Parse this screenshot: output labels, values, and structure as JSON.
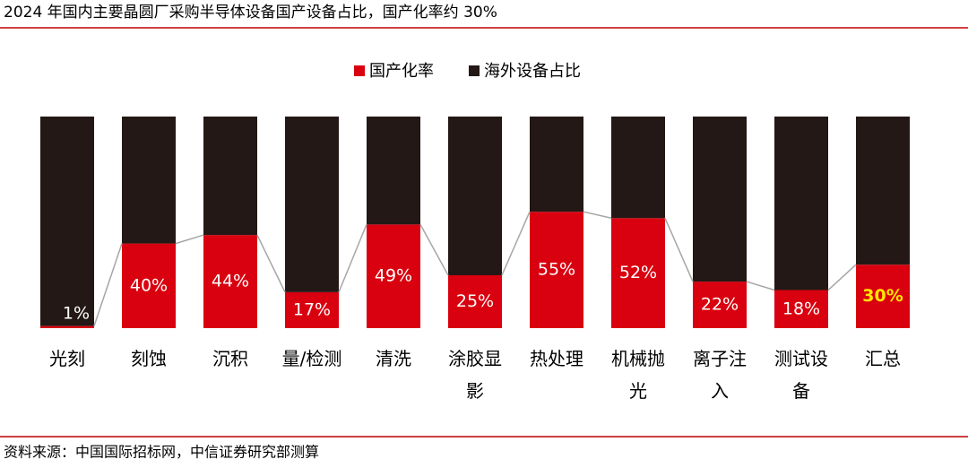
{
  "chart_data": {
    "type": "stacked_bar_100",
    "title": "2024 年国内主要晶圆厂采购半导体设备国产设备占比，国产化率约 30%",
    "source": "资料来源：中国国际招标网，中信证券研究部测算",
    "categories": [
      "光刻",
      "刻蚀",
      "沉积",
      "量/检测",
      "清洗",
      "涂胶显影",
      "热处理",
      "机械抛光",
      "离子注入",
      "测试设备",
      "汇总"
    ],
    "series": [
      {
        "name": "国产化率",
        "color": "#d9000f",
        "values": [
          1,
          40,
          44,
          17,
          49,
          25,
          55,
          52,
          22,
          18,
          30
        ],
        "value_labels": [
          "1%",
          "40%",
          "44%",
          "17%",
          "49%",
          "25%",
          "55%",
          "52%",
          "22%",
          "18%",
          "30%"
        ],
        "value_label_colors": [
          "#ffffff",
          "#ffffff",
          "#ffffff",
          "#ffffff",
          "#ffffff",
          "#ffffff",
          "#ffffff",
          "#ffffff",
          "#ffffff",
          "#ffffff",
          "#ffe600"
        ]
      },
      {
        "name": "海外设备占比",
        "color": "#231815",
        "values": [
          99,
          60,
          56,
          83,
          51,
          75,
          45,
          48,
          78,
          82,
          70
        ]
      }
    ],
    "ylim": [
      0,
      100
    ],
    "connector_color": "#a6a6a6",
    "rule_color": "#c00000"
  }
}
